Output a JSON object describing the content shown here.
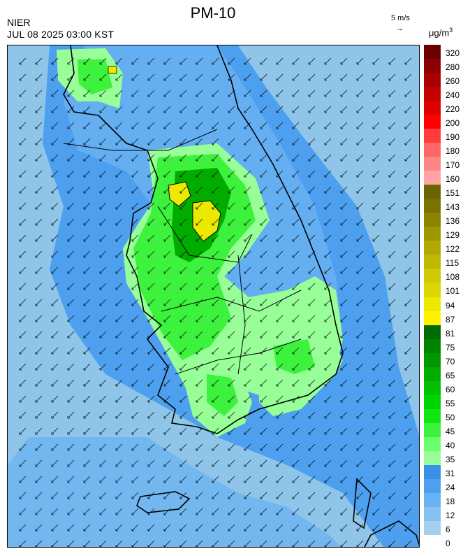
{
  "header": {
    "title": "PM-10",
    "agency": "NIER",
    "datetime": "JUL 08 2025 03:00 KST",
    "wind_reference_label": "5 m/s",
    "wind_reference_arrow": "→",
    "unit": "μg/m",
    "unit_sup": "3"
  },
  "legend": {
    "levels": [
      "320",
      "280",
      "260",
      "240",
      "220",
      "200",
      "190",
      "180",
      "170",
      "160",
      "151",
      "143",
      "136",
      "129",
      "122",
      "115",
      "108",
      "101",
      "94",
      "87",
      "81",
      "75",
      "70",
      "65",
      "60",
      "55",
      "50",
      "45",
      "40",
      "35",
      "31",
      "24",
      "18",
      "12",
      "6",
      "0"
    ],
    "colors": [
      "#6b0000",
      "#8b0000",
      "#a80000",
      "#c40000",
      "#e00000",
      "#ff0000",
      "#ff3b3b",
      "#ff6666",
      "#ff8585",
      "#ffa3a3",
      "#6b6400",
      "#7a7200",
      "#8c8400",
      "#9e9700",
      "#b0a800",
      "#bfb800",
      "#cec900",
      "#dcd700",
      "#ece800",
      "#fff200",
      "#006b00",
      "#008400",
      "#009800",
      "#00ac00",
      "#00c000",
      "#00d400",
      "#10e610",
      "#3cf23c",
      "#6bff6b",
      "#98ff98",
      "#3a8fe8",
      "#4d9ff0",
      "#6ab1f3",
      "#86c1ef",
      "#a4d0ee"
    ]
  },
  "map": {
    "concentration_classes": {
      "sea": "#8ec5e8",
      "low": "#6ab1f3",
      "mid": "#4d9ff0",
      "light_green": "#98ff98",
      "green": "#3cf23c",
      "green2": "#10e610",
      "green3": "#00ac00",
      "dark_green": "#008400",
      "yellow": "#ece800"
    },
    "wind_direction": "southwest, weak"
  }
}
